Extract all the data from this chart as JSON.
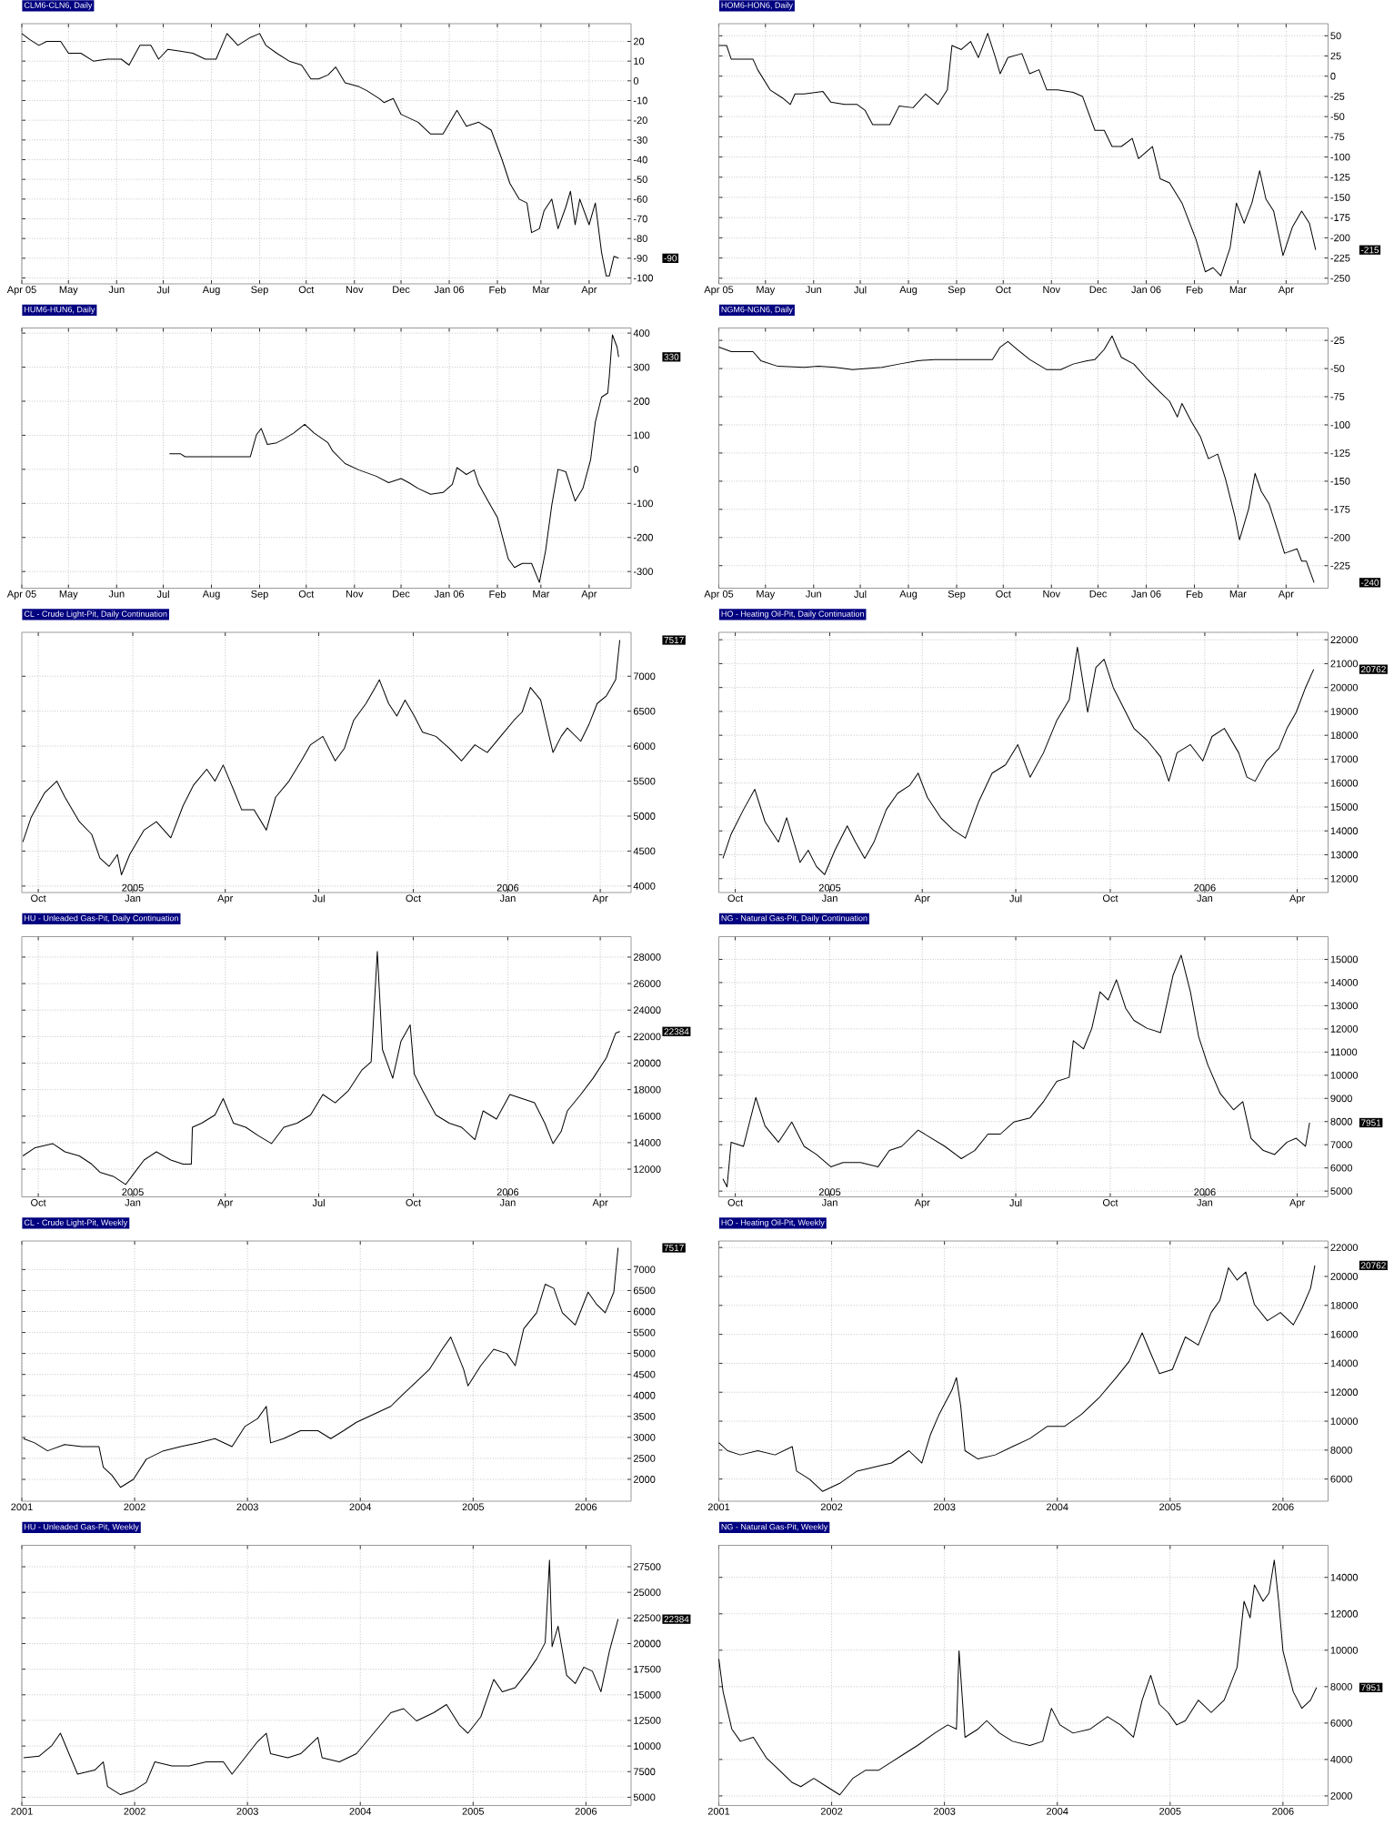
{
  "chart_data": [
    {
      "type": "line",
      "title": "CLM6-CLN6, Daily",
      "color": "#000000",
      "grid": true,
      "xlim": [
        "2005-04-01",
        "2006-04-28"
      ],
      "ylim": [
        -103,
        29
      ],
      "xticks": [
        {
          "value": "2005-04-01",
          "label": "Apr 05"
        },
        {
          "value": "2005-05-01",
          "label": "May"
        },
        {
          "value": "2005-06-01",
          "label": "Jun"
        },
        {
          "value": "2005-07-01",
          "label": "Jul"
        },
        {
          "value": "2005-08-01",
          "label": "Aug"
        },
        {
          "value": "2005-09-01",
          "label": "Sep"
        },
        {
          "value": "2005-10-01",
          "label": "Oct"
        },
        {
          "value": "2005-11-01",
          "label": "Nov"
        },
        {
          "value": "2005-12-01",
          "label": "Dec"
        },
        {
          "value": "2006-01-01",
          "label": "Jan 06"
        },
        {
          "value": "2006-02-01",
          "label": "Feb"
        },
        {
          "value": "2006-03-01",
          "label": "Mar"
        },
        {
          "value": "2006-04-01",
          "label": "Apr"
        }
      ],
      "yticks": [
        -100,
        -90,
        -80,
        -70,
        -60,
        -50,
        -40,
        -30,
        -20,
        -10,
        0,
        10,
        20
      ],
      "x": [
        "2005-04-01",
        "2005-04-06",
        "2005-04-12",
        "2005-04-17",
        "2005-04-26",
        "2005-05-01",
        "2005-05-09",
        "2005-05-17",
        "2005-05-26",
        "2005-06-04",
        "2005-06-09",
        "2005-06-16",
        "2005-06-23",
        "2005-06-28",
        "2005-07-04",
        "2005-07-12",
        "2005-07-20",
        "2005-07-28",
        "2005-08-04",
        "2005-08-11",
        "2005-08-18",
        "2005-08-26",
        "2005-09-01",
        "2005-09-05",
        "2005-09-12",
        "2005-09-20",
        "2005-09-28",
        "2005-10-04",
        "2005-10-09",
        "2005-10-15",
        "2005-10-20",
        "2005-10-26",
        "2005-11-04",
        "2005-11-09",
        "2005-11-17",
        "2005-11-20",
        "2005-11-26",
        "2005-12-01",
        "2005-12-12",
        "2005-12-20",
        "2005-12-28",
        "2006-01-06",
        "2006-01-12",
        "2006-01-20",
        "2006-01-28",
        "2006-02-04",
        "2006-02-09",
        "2006-02-15",
        "2006-02-20",
        "2006-02-23",
        "2006-02-28",
        "2006-03-03",
        "2006-03-08",
        "2006-03-12",
        "2006-03-17",
        "2006-03-20",
        "2006-03-23",
        "2006-03-26",
        "2006-04-01",
        "2006-04-05",
        "2006-04-09",
        "2006-04-12",
        "2006-04-14",
        "2006-04-17",
        "2006-04-20"
      ],
      "values": [
        24,
        21,
        18,
        20,
        20,
        14,
        14,
        10,
        11,
        11,
        8,
        18,
        18,
        11,
        16,
        15,
        14,
        11,
        11,
        24,
        18,
        22,
        24,
        18,
        14,
        10,
        8,
        1,
        1,
        3,
        7,
        -1,
        -3,
        -5,
        -9,
        -11,
        -9,
        -17,
        -21,
        -27,
        -27,
        -15,
        -23,
        -21,
        -25,
        -40,
        -52,
        -60,
        -62,
        -77,
        -75,
        -66,
        -60,
        -75,
        -64,
        -56,
        -73,
        -60,
        -73,
        -62,
        -87,
        -99,
        -99,
        -89,
        -90
      ],
      "annotations": [
        "-90"
      ]
    },
    {
      "type": "line",
      "title": "HOM6-HON6, Daily",
      "color": "#000000",
      "grid": true,
      "xlim": [
        "2005-04-01",
        "2006-04-28"
      ],
      "ylim": [
        -257,
        65
      ],
      "xticks": [
        {
          "value": "2005-04-01",
          "label": "Apr 05"
        },
        {
          "value": "2005-05-01",
          "label": "May"
        },
        {
          "value": "2005-06-01",
          "label": "Jun"
        },
        {
          "value": "2005-07-01",
          "label": "Jul"
        },
        {
          "value": "2005-08-01",
          "label": "Aug"
        },
        {
          "value": "2005-09-01",
          "label": "Sep"
        },
        {
          "value": "2005-10-01",
          "label": "Oct"
        },
        {
          "value": "2005-11-01",
          "label": "Nov"
        },
        {
          "value": "2005-12-01",
          "label": "Dec"
        },
        {
          "value": "2006-01-01",
          "label": "Jan 06"
        },
        {
          "value": "2006-02-01",
          "label": "Feb"
        },
        {
          "value": "2006-03-01",
          "label": "Mar"
        },
        {
          "value": "2006-04-01",
          "label": "Apr"
        }
      ],
      "yticks": [
        -250,
        -225,
        -200,
        -175,
        -150,
        -125,
        -100,
        -75,
        -50,
        -25,
        0,
        25,
        50
      ],
      "x": [
        "2005-04-01",
        "2005-04-06",
        "2005-04-09",
        "2005-04-23",
        "2005-04-26",
        "2005-05-04",
        "2005-05-12",
        "2005-05-17",
        "2005-05-20",
        "2005-05-26",
        "2005-06-07",
        "2005-06-12",
        "2005-06-21",
        "2005-06-29",
        "2005-07-04",
        "2005-07-09",
        "2005-07-20",
        "2005-07-26",
        "2005-08-04",
        "2005-08-12",
        "2005-08-20",
        "2005-08-26",
        "2005-08-29",
        "2005-09-04",
        "2005-09-10",
        "2005-09-15",
        "2005-09-21",
        "2005-09-26",
        "2005-09-29",
        "2005-10-04",
        "2005-10-13",
        "2005-10-18",
        "2005-10-24",
        "2005-10-29",
        "2005-11-05",
        "2005-11-15",
        "2005-11-21",
        "2005-11-29",
        "2005-12-05",
        "2005-12-10",
        "2005-12-16",
        "2005-12-23",
        "2005-12-27",
        "2006-01-05",
        "2006-01-10",
        "2006-01-16",
        "2006-01-24",
        "2006-02-02",
        "2006-02-08",
        "2006-02-13",
        "2006-02-18",
        "2006-02-24",
        "2006-02-28",
        "2006-03-05",
        "2006-03-10",
        "2006-03-15",
        "2006-03-19",
        "2006-03-24",
        "2006-03-30",
        "2006-04-05",
        "2006-04-11",
        "2006-04-16",
        "2006-04-20"
      ],
      "values": [
        38,
        38,
        21,
        21,
        8,
        -17,
        -27,
        -35,
        -22,
        -22,
        -19,
        -32,
        -35,
        -35,
        -42,
        -60,
        -60,
        -37,
        -39,
        -22,
        -35,
        -17,
        38,
        33,
        43,
        23,
        53,
        23,
        3,
        23,
        28,
        3,
        8,
        -17,
        -17,
        -20,
        -25,
        -67,
        -67,
        -87,
        -87,
        -77,
        -102,
        -87,
        -127,
        -132,
        -157,
        -202,
        -242,
        -237,
        -247,
        -212,
        -157,
        -182,
        -157,
        -117,
        -152,
        -167,
        -222,
        -187,
        -167,
        -182,
        -215
      ],
      "annotations": [
        "-215"
      ]
    },
    {
      "type": "line",
      "title": "HUM6-HUN6, Daily",
      "color": "#000000",
      "grid": true,
      "xlim": [
        "2005-04-01",
        "2006-04-28"
      ],
      "ylim": [
        -349,
        415
      ],
      "xticks": [
        {
          "value": "2005-04-01",
          "label": "Apr 05"
        },
        {
          "value": "2005-05-01",
          "label": "May"
        },
        {
          "value": "2005-06-01",
          "label": "Jun"
        },
        {
          "value": "2005-07-01",
          "label": "Jul"
        },
        {
          "value": "2005-08-01",
          "label": "Aug"
        },
        {
          "value": "2005-09-01",
          "label": "Sep"
        },
        {
          "value": "2005-10-01",
          "label": "Oct"
        },
        {
          "value": "2005-11-01",
          "label": "Nov"
        },
        {
          "value": "2005-12-01",
          "label": "Dec"
        },
        {
          "value": "2006-01-01",
          "label": "Jan 06"
        },
        {
          "value": "2006-02-01",
          "label": "Feb"
        },
        {
          "value": "2006-03-01",
          "label": "Mar"
        },
        {
          "value": "2006-04-01",
          "label": "Apr"
        }
      ],
      "yticks": [
        -300,
        -200,
        -100,
        0,
        100,
        200,
        300,
        400
      ],
      "x": [
        "2005-07-05",
        "2005-07-12",
        "2005-07-15",
        "2005-08-26",
        "2005-08-30",
        "2005-09-02",
        "2005-09-06",
        "2005-09-12",
        "2005-09-17",
        "2005-09-23",
        "2005-09-30",
        "2005-10-06",
        "2005-10-15",
        "2005-10-18",
        "2005-10-26",
        "2005-11-04",
        "2005-11-15",
        "2005-11-23",
        "2005-12-01",
        "2005-12-06",
        "2005-12-12",
        "2005-12-20",
        "2005-12-28",
        "2006-01-03",
        "2006-01-06",
        "2006-01-12",
        "2006-01-17",
        "2006-01-20",
        "2006-01-26",
        "2006-02-01",
        "2006-02-08",
        "2006-02-12",
        "2006-02-17",
        "2006-02-23",
        "2006-02-28",
        "2006-03-04",
        "2006-03-08",
        "2006-03-12",
        "2006-03-17",
        "2006-03-23",
        "2006-03-28",
        "2006-04-02",
        "2006-04-05",
        "2006-04-09",
        "2006-04-13",
        "2006-04-14",
        "2006-04-16",
        "2006-04-19",
        "2006-04-20"
      ],
      "values": [
        46,
        46,
        37,
        37,
        102,
        120,
        73,
        78,
        90,
        107,
        132,
        107,
        78,
        54,
        17,
        -2,
        -20,
        -39,
        -27,
        -39,
        -56,
        -73,
        -68,
        -44,
        5,
        -15,
        -2,
        -44,
        -93,
        -141,
        -263,
        -288,
        -276,
        -276,
        -332,
        -239,
        -105,
        0,
        -7,
        -93,
        -56,
        29,
        139,
        212,
        224,
        273,
        395,
        359,
        330
      ],
      "annotations": [
        "330"
      ]
    },
    {
      "type": "line",
      "title": "NGM6-NGN6, Daily",
      "color": "#000000",
      "grid": true,
      "xlim": [
        "2005-04-01",
        "2006-04-28"
      ],
      "ylim": [
        -245,
        -14
      ],
      "xticks": [
        {
          "value": "2005-04-01",
          "label": "Apr 05"
        },
        {
          "value": "2005-05-01",
          "label": "May"
        },
        {
          "value": "2005-06-01",
          "label": "Jun"
        },
        {
          "value": "2005-07-01",
          "label": "Jul"
        },
        {
          "value": "2005-08-01",
          "label": "Aug"
        },
        {
          "value": "2005-09-01",
          "label": "Sep"
        },
        {
          "value": "2005-10-01",
          "label": "Oct"
        },
        {
          "value": "2005-11-01",
          "label": "Nov"
        },
        {
          "value": "2005-12-01",
          "label": "Dec"
        },
        {
          "value": "2006-01-01",
          "label": "Jan 06"
        },
        {
          "value": "2006-02-01",
          "label": "Feb"
        },
        {
          "value": "2006-03-01",
          "label": "Mar"
        },
        {
          "value": "2006-04-01",
          "label": "Apr"
        }
      ],
      "yticks": [
        -225,
        -200,
        -175,
        -150,
        -125,
        -100,
        -75,
        -50,
        -25
      ],
      "x": [
        "2005-04-01",
        "2005-04-09",
        "2005-04-23",
        "2005-04-28",
        "2005-05-09",
        "2005-05-26",
        "2005-06-04",
        "2005-06-15",
        "2005-06-26",
        "2005-07-15",
        "2005-07-26",
        "2005-08-07",
        "2005-08-18",
        "2005-09-10",
        "2005-09-24",
        "2005-09-29",
        "2005-10-04",
        "2005-10-10",
        "2005-10-18",
        "2005-10-29",
        "2005-11-07",
        "2005-11-15",
        "2005-11-24",
        "2005-11-29",
        "2005-12-05",
        "2005-12-10",
        "2005-12-13",
        "2005-12-16",
        "2005-12-24",
        "2006-01-02",
        "2006-01-10",
        "2006-01-16",
        "2006-01-21",
        "2006-01-24",
        "2006-01-30",
        "2006-02-05",
        "2006-02-10",
        "2006-02-16",
        "2006-02-21",
        "2006-02-27",
        "2006-03-02",
        "2006-03-08",
        "2006-03-12",
        "2006-03-16",
        "2006-03-21",
        "2006-03-27",
        "2006-03-31",
        "2006-04-08",
        "2006-04-11",
        "2006-04-14",
        "2006-04-19"
      ],
      "values": [
        -31,
        -35,
        -35,
        -43,
        -48,
        -49,
        -48,
        -49,
        -51,
        -49,
        -46,
        -43,
        -42,
        -42,
        -42,
        -31,
        -26,
        -33,
        -42,
        -51,
        -51,
        -46,
        -43,
        -42,
        -33,
        -21,
        -31,
        -40,
        -46,
        -60,
        -71,
        -79,
        -93,
        -81,
        -97,
        -111,
        -130,
        -126,
        -148,
        -181,
        -202,
        -174,
        -143,
        -159,
        -170,
        -196,
        -214,
        -210,
        -221,
        -221,
        -240
      ],
      "annotations": [
        "-240"
      ]
    },
    {
      "type": "line",
      "title": "CL - Crude Light-Pit, Daily Continuation",
      "color": "#000000",
      "grid": true,
      "xlim": [
        "2004-09-15",
        "2006-05-01"
      ],
      "ylim": [
        3907,
        7628
      ],
      "xticks": [
        {
          "value": "2004-10-01",
          "label": "Oct"
        },
        {
          "value": "2005-01-01",
          "label": "Jan"
        },
        {
          "value": "2005-04-01",
          "label": "Apr"
        },
        {
          "value": "2005-07-01",
          "label": "Jul"
        },
        {
          "value": "2005-10-01",
          "label": "Oct"
        },
        {
          "value": "2006-01-01",
          "label": "Jan"
        },
        {
          "value": "2006-04-01",
          "label": "Apr"
        }
      ],
      "yticks": [
        4000,
        4500,
        5000,
        5500,
        6000,
        6500,
        7000
      ],
      "x": [
        "2004-09-16",
        "2004-09-24",
        "2004-10-07",
        "2004-10-19",
        "2004-10-27",
        "2004-11-10",
        "2004-11-22",
        "2004-11-30",
        "2004-12-09",
        "2004-12-17",
        "2004-12-21",
        "2004-12-29",
        "2005-01-12",
        "2005-01-24",
        "2005-02-07",
        "2005-02-19",
        "2005-03-01",
        "2005-03-14",
        "2005-03-22",
        "2005-03-30",
        "2005-04-09",
        "2005-04-17",
        "2005-04-29",
        "2005-05-11",
        "2005-05-20",
        "2005-06-02",
        "2005-06-14",
        "2005-06-23",
        "2005-07-05",
        "2005-07-17",
        "2005-07-26",
        "2005-08-04",
        "2005-08-16",
        "2005-08-25",
        "2005-08-29",
        "2005-09-07",
        "2005-09-15",
        "2005-09-23",
        "2005-10-02",
        "2005-10-10",
        "2005-10-23",
        "2005-11-05",
        "2005-11-17",
        "2005-11-30",
        "2005-12-12",
        "2005-12-25",
        "2006-01-07",
        "2006-01-15",
        "2006-01-23",
        "2006-02-02",
        "2006-02-14",
        "2006-02-22",
        "2006-02-28",
        "2006-03-13",
        "2006-03-21",
        "2006-03-29",
        "2006-04-07",
        "2006-04-16",
        "2006-04-20"
      ],
      "values": [
        4630,
        4980,
        5330,
        5500,
        5270,
        4920,
        4740,
        4400,
        4280,
        4450,
        4160,
        4450,
        4800,
        4920,
        4690,
        5150,
        5440,
        5670,
        5500,
        5730,
        5380,
        5090,
        5090,
        4800,
        5270,
        5500,
        5790,
        6020,
        6140,
        5790,
        5970,
        6370,
        6610,
        6840,
        6950,
        6610,
        6430,
        6660,
        6430,
        6200,
        6140,
        5970,
        5790,
        6020,
        5910,
        6140,
        6370,
        6490,
        6840,
        6660,
        5910,
        6140,
        6260,
        6070,
        6310,
        6610,
        6720,
        6950,
        7517
      ],
      "annotations": [
        "7517",
        "2005",
        "2006"
      ]
    },
    {
      "type": "line",
      "title": "HO - Heating Oil-Pit, Daily Continuation",
      "color": "#000000",
      "grid": true,
      "xlim": [
        "2004-09-15",
        "2006-05-01"
      ],
      "ylim": [
        11420,
        22310
      ],
      "xticks": [
        {
          "value": "2004-10-01",
          "label": "Oct"
        },
        {
          "value": "2005-01-01",
          "label": "Jan"
        },
        {
          "value": "2005-04-01",
          "label": "Apr"
        },
        {
          "value": "2005-07-01",
          "label": "Jul"
        },
        {
          "value": "2005-10-01",
          "label": "Oct"
        },
        {
          "value": "2006-01-01",
          "label": "Jan"
        },
        {
          "value": "2006-04-01",
          "label": "Apr"
        }
      ],
      "yticks": [
        12000,
        13000,
        14000,
        15000,
        16000,
        17000,
        18000,
        19000,
        20000,
        21000,
        22000
      ],
      "x": [
        "2004-09-19",
        "2004-09-27",
        "2004-10-09",
        "2004-10-20",
        "2004-10-30",
        "2004-11-12",
        "2004-11-20",
        "2004-12-03",
        "2004-12-11",
        "2004-12-19",
        "2004-12-27",
        "2005-01-06",
        "2005-01-18",
        "2005-01-26",
        "2005-02-04",
        "2005-02-13",
        "2005-02-25",
        "2005-03-08",
        "2005-03-20",
        "2005-03-28",
        "2005-04-06",
        "2005-04-19",
        "2005-05-01",
        "2005-05-13",
        "2005-05-26",
        "2005-06-08",
        "2005-06-21",
        "2005-07-03",
        "2005-07-15",
        "2005-07-28",
        "2005-08-10",
        "2005-08-22",
        "2005-08-30",
        "2005-09-09",
        "2005-09-17",
        "2005-09-25",
        "2005-10-04",
        "2005-10-12",
        "2005-10-24",
        "2005-11-06",
        "2005-11-19",
        "2005-11-27",
        "2005-12-05",
        "2005-12-18",
        "2005-12-30",
        "2006-01-08",
        "2006-01-20",
        "2006-02-03",
        "2006-02-11",
        "2006-02-19",
        "2006-03-02",
        "2006-03-14",
        "2006-03-22",
        "2006-03-31",
        "2006-04-09",
        "2006-04-17"
      ],
      "values": [
        12850,
        13870,
        14890,
        15740,
        14380,
        13530,
        14550,
        12680,
        13190,
        12510,
        12170,
        13190,
        14210,
        13530,
        12850,
        13530,
        14890,
        15570,
        15910,
        16420,
        15400,
        14550,
        14040,
        13700,
        15230,
        16420,
        16760,
        17610,
        16250,
        17270,
        18630,
        19480,
        21690,
        18970,
        20840,
        21180,
        19990,
        19310,
        18290,
        17780,
        17100,
        16080,
        17270,
        17610,
        16930,
        17950,
        18290,
        17270,
        16250,
        16080,
        16930,
        17440,
        18290,
        18970,
        19990,
        20762
      ],
      "annotations": [
        "20762",
        "2005",
        "2006"
      ]
    },
    {
      "type": "line",
      "title": "HU - Unleaded Gas-Pit, Daily Continuation",
      "color": "#000000",
      "grid": true,
      "xlim": [
        "2004-09-15",
        "2006-05-01"
      ],
      "ylim": [
        9910,
        29540
      ],
      "xticks": [
        {
          "value": "2004-10-01",
          "label": "Oct"
        },
        {
          "value": "2005-01-01",
          "label": "Jan"
        },
        {
          "value": "2005-04-01",
          "label": "Apr"
        },
        {
          "value": "2005-07-01",
          "label": "Jul"
        },
        {
          "value": "2005-10-01",
          "label": "Oct"
        },
        {
          "value": "2006-01-01",
          "label": "Jan"
        },
        {
          "value": "2006-04-01",
          "label": "Apr"
        }
      ],
      "yticks": [
        12000,
        14000,
        16000,
        18000,
        20000,
        22000,
        24000,
        26000,
        28000
      ],
      "x": [
        "2004-09-16",
        "2004-09-28",
        "2004-10-15",
        "2004-10-27",
        "2004-11-10",
        "2004-11-22",
        "2004-11-30",
        "2004-12-13",
        "2004-12-25",
        "2005-01-03",
        "2005-01-12",
        "2005-01-24",
        "2005-02-07",
        "2005-02-19",
        "2005-02-27",
        "2005-02-28",
        "2005-03-09",
        "2005-03-22",
        "2005-03-30",
        "2005-04-09",
        "2005-04-21",
        "2005-05-03",
        "2005-05-16",
        "2005-05-28",
        "2005-06-10",
        "2005-06-23",
        "2005-07-05",
        "2005-07-17",
        "2005-07-30",
        "2005-08-12",
        "2005-08-21",
        "2005-08-27",
        "2005-09-01",
        "2005-09-11",
        "2005-09-19",
        "2005-09-28",
        "2005-10-02",
        "2005-10-10",
        "2005-10-23",
        "2005-11-05",
        "2005-11-17",
        "2005-11-30",
        "2005-12-08",
        "2005-12-21",
        "2006-01-03",
        "2006-01-15",
        "2006-01-27",
        "2006-02-06",
        "2006-02-14",
        "2006-02-22",
        "2006-02-28",
        "2006-03-13",
        "2006-03-25",
        "2006-04-07",
        "2006-04-16",
        "2006-04-20"
      ],
      "values": [
        13000,
        13620,
        13930,
        13310,
        13000,
        12380,
        11770,
        11460,
        10840,
        11770,
        12690,
        13310,
        12690,
        12380,
        12380,
        15160,
        15470,
        16090,
        17320,
        15470,
        15160,
        14540,
        13930,
        15160,
        15470,
        16090,
        17630,
        17010,
        17940,
        19480,
        20100,
        28430,
        21030,
        18860,
        21640,
        22880,
        19170,
        17940,
        16090,
        15470,
        15160,
        14230,
        16400,
        15780,
        17630,
        17320,
        17010,
        15470,
        13930,
        14850,
        16400,
        17630,
        18860,
        20410,
        22260,
        22384
      ],
      "annotations": [
        "22384",
        "2005",
        "2006"
      ]
    },
    {
      "type": "line",
      "title": "NG - Natural Gas-Pit, Daily Continuation",
      "color": "#000000",
      "grid": true,
      "xlim": [
        "2004-09-15",
        "2006-05-01"
      ],
      "ylim": [
        4750,
        15980
      ],
      "xticks": [
        {
          "value": "2004-10-01",
          "label": "Oct"
        },
        {
          "value": "2005-01-01",
          "label": "Jan"
        },
        {
          "value": "2005-04-01",
          "label": "Apr"
        },
        {
          "value": "2005-07-01",
          "label": "Jul"
        },
        {
          "value": "2005-10-01",
          "label": "Oct"
        },
        {
          "value": "2006-01-01",
          "label": "Jan"
        },
        {
          "value": "2006-04-01",
          "label": "Apr"
        }
      ],
      "yticks": [
        5000,
        6000,
        7000,
        8000,
        9000,
        10000,
        11000,
        12000,
        13000,
        14000,
        15000
      ],
      "x": [
        "2004-09-19",
        "2004-09-23",
        "2004-09-27",
        "2004-10-09",
        "2004-10-21",
        "2004-10-30",
        "2004-11-12",
        "2004-11-25",
        "2004-12-07",
        "2004-12-19",
        "2005-01-02",
        "2005-01-14",
        "2005-01-31",
        "2005-02-17",
        "2005-02-28",
        "2005-03-12",
        "2005-03-28",
        "2005-04-10",
        "2005-04-23",
        "2005-05-09",
        "2005-05-22",
        "2005-06-04",
        "2005-06-16",
        "2005-06-29",
        "2005-07-15",
        "2005-07-28",
        "2005-08-10",
        "2005-08-22",
        "2005-08-26",
        "2005-09-05",
        "2005-09-13",
        "2005-09-21",
        "2005-09-29",
        "2005-10-07",
        "2005-10-16",
        "2005-10-24",
        "2005-11-06",
        "2005-11-19",
        "2005-12-01",
        "2005-12-09",
        "2005-12-18",
        "2005-12-26",
        "2006-01-04",
        "2006-01-16",
        "2006-01-29",
        "2006-02-07",
        "2006-02-15",
        "2006-02-27",
        "2006-03-10",
        "2006-03-22",
        "2006-03-31",
        "2006-04-09",
        "2006-04-13"
      ],
      "values": [
        5530,
        5180,
        7110,
        6930,
        9040,
        7810,
        7110,
        7980,
        6930,
        6580,
        6050,
        6230,
        6230,
        6050,
        6750,
        6930,
        7630,
        7280,
        6930,
        6400,
        6750,
        7460,
        7460,
        7980,
        8160,
        8860,
        9740,
        9910,
        11490,
        11140,
        12020,
        13600,
        13250,
        14120,
        12890,
        12370,
        12020,
        11840,
        14300,
        15180,
        13600,
        11670,
        10440,
        9210,
        8510,
        8860,
        7280,
        6750,
        6580,
        7110,
        7280,
        6930,
        7951
      ],
      "annotations": [
        "7951",
        "2005",
        "2006"
      ]
    },
    {
      "type": "line",
      "title": "CL - Crude Light-Pit, Weekly",
      "color": "#000000",
      "grid": true,
      "xlim": [
        2001.0,
        2006.4
      ],
      "ylim": [
        1480,
        7680
      ],
      "xticks": [
        2001,
        2002,
        2003,
        2004,
        2005,
        2006
      ],
      "yticks": [
        2000,
        2500,
        3000,
        3500,
        4000,
        4500,
        5000,
        5500,
        6000,
        6500,
        7000
      ],
      "x": [
        2001.015,
        2001.114,
        2001.228,
        2001.38,
        2001.532,
        2001.684,
        2001.722,
        2001.798,
        2001.875,
        2001.989,
        2002.103,
        2002.255,
        2002.407,
        2002.559,
        2002.711,
        2002.863,
        2002.977,
        2003.091,
        2003.167,
        2003.205,
        2003.319,
        2003.471,
        2003.624,
        2003.738,
        2003.852,
        2003.966,
        2004.118,
        2004.27,
        2004.384,
        2004.498,
        2004.612,
        2004.726,
        2004.802,
        2004.916,
        2004.954,
        2005.068,
        2005.183,
        2005.297,
        2005.373,
        2005.449,
        2005.563,
        2005.639,
        2005.715,
        2005.791,
        2005.905,
        2006.019,
        2006.095,
        2006.171,
        2006.247,
        2006.285
      ],
      "values": [
        2970,
        2870,
        2680,
        2830,
        2780,
        2780,
        2290,
        2100,
        1810,
        2000,
        2480,
        2680,
        2780,
        2870,
        2970,
        2780,
        3260,
        3450,
        3740,
        2870,
        2970,
        3160,
        3160,
        2970,
        3160,
        3360,
        3550,
        3740,
        4040,
        4330,
        4620,
        5100,
        5390,
        4620,
        4230,
        4710,
        5100,
        5000,
        4710,
        5590,
        5970,
        6650,
        6550,
        5970,
        5680,
        6460,
        6170,
        5970,
        6460,
        7517
      ],
      "annotations": [
        "7517"
      ]
    },
    {
      "type": "line",
      "title": "HO - Heating Oil-Pit, Weekly",
      "color": "#000000",
      "grid": true,
      "xlim": [
        2001.0,
        2006.4
      ],
      "ylim": [
        4470,
        22450
      ],
      "xticks": [
        2001,
        2002,
        2003,
        2004,
        2005,
        2006
      ],
      "yticks": [
        6000,
        8000,
        10000,
        12000,
        14000,
        16000,
        18000,
        20000,
        22000
      ],
      "x": [
        2001.0,
        2001.077,
        2001.191,
        2001.345,
        2001.498,
        2001.651,
        2001.689,
        2001.804,
        2001.919,
        2002.072,
        2002.225,
        2002.378,
        2002.531,
        2002.685,
        2002.799,
        2002.876,
        2002.953,
        2003.067,
        2003.106,
        2003.144,
        2003.182,
        2003.297,
        2003.45,
        2003.603,
        2003.757,
        2003.91,
        2004.063,
        2004.216,
        2004.369,
        2004.522,
        2004.637,
        2004.752,
        2004.828,
        2004.905,
        2005.02,
        2005.135,
        2005.25,
        2005.364,
        2005.441,
        2005.518,
        2005.594,
        2005.671,
        2005.747,
        2005.862,
        2005.977,
        2006.092,
        2006.168,
        2006.245,
        2006.283
      ],
      "values": [
        8520,
        7960,
        7670,
        7960,
        7670,
        8240,
        6550,
        5990,
        5150,
        5710,
        6550,
        6830,
        7110,
        7960,
        7110,
        9080,
        10480,
        12170,
        13010,
        11050,
        7960,
        7390,
        7670,
        8240,
        8800,
        9640,
        9640,
        10480,
        11610,
        13010,
        14130,
        16100,
        14690,
        13290,
        13570,
        15820,
        15260,
        17510,
        18350,
        20600,
        19750,
        20310,
        18070,
        16940,
        17510,
        16660,
        17780,
        19190,
        20762
      ],
      "annotations": [
        "20762"
      ]
    },
    {
      "type": "line",
      "title": "HU - Unleaded Gas-Pit, Weekly",
      "color": "#000000",
      "grid": true,
      "xlim": [
        2001.0,
        2006.4
      ],
      "ylim": [
        4190,
        29590
      ],
      "xticks": [
        2001,
        2002,
        2003,
        2004,
        2005,
        2006
      ],
      "yticks": [
        5000,
        7500,
        10000,
        12500,
        15000,
        17500,
        20000,
        22500,
        25000,
        27500
      ],
      "x": [
        2001.015,
        2001.152,
        2001.266,
        2001.342,
        2001.418,
        2001.494,
        2001.646,
        2001.722,
        2001.76,
        2001.875,
        2001.989,
        2002.103,
        2002.179,
        2002.331,
        2002.483,
        2002.635,
        2002.787,
        2002.863,
        2002.977,
        2003.091,
        2003.167,
        2003.205,
        2003.357,
        2003.471,
        2003.624,
        2003.662,
        2003.814,
        2003.966,
        2004.118,
        2004.27,
        2004.384,
        2004.498,
        2004.65,
        2004.764,
        2004.878,
        2004.954,
        2005.068,
        2005.183,
        2005.259,
        2005.373,
        2005.487,
        2005.563,
        2005.639,
        2005.677,
        2005.7,
        2005.753,
        2005.829,
        2005.905,
        2005.981,
        2006.057,
        2006.133,
        2006.209,
        2006.285
      ],
      "values": [
        8850,
        9000,
        10050,
        11250,
        9250,
        7250,
        7650,
        8450,
        6050,
        5250,
        5650,
        6450,
        8450,
        8050,
        8050,
        8450,
        8450,
        7250,
        8850,
        10450,
        11250,
        9250,
        8850,
        9250,
        10850,
        8850,
        8450,
        9250,
        11250,
        13250,
        13650,
        12450,
        13250,
        14050,
        12050,
        11250,
        12850,
        16500,
        15300,
        15700,
        17300,
        18500,
        20100,
        28150,
        19700,
        21700,
        16900,
        16100,
        17700,
        17300,
        15300,
        19300,
        22384
      ],
      "annotations": [
        "22384"
      ]
    },
    {
      "type": "line",
      "title": "NG - Natural Gas-Pit, Weekly",
      "color": "#000000",
      "grid": true,
      "xlim": [
        2001.0,
        2006.4
      ],
      "ylim": [
        1470,
        15760
      ],
      "xticks": [
        2001,
        2002,
        2003,
        2004,
        2005,
        2006
      ],
      "yticks": [
        2000,
        4000,
        6000,
        8000,
        10000,
        12000,
        14000
      ],
      "x": [
        2001.0,
        2001.038,
        2001.115,
        2001.191,
        2001.306,
        2001.421,
        2001.536,
        2001.651,
        2001.727,
        2001.842,
        2001.957,
        2002.072,
        2002.187,
        2002.302,
        2002.417,
        2002.531,
        2002.646,
        2002.761,
        2002.914,
        2003.029,
        2003.106,
        2003.129,
        2003.182,
        2003.297,
        2003.374,
        2003.488,
        2003.603,
        2003.757,
        2003.871,
        2003.948,
        2004.024,
        2004.139,
        2004.292,
        2004.445,
        2004.56,
        2004.675,
        2004.752,
        2004.828,
        2004.905,
        2004.982,
        2005.058,
        2005.135,
        2005.25,
        2005.364,
        2005.479,
        2005.594,
        2005.655,
        2005.709,
        2005.747,
        2005.824,
        2005.877,
        2005.923,
        2005.962,
        2006.0,
        2006.092,
        2006.168,
        2006.245,
        2006.298
      ],
      "values": [
        9520,
        7710,
        5670,
        5000,
        5220,
        4090,
        3410,
        2730,
        2510,
        2960,
        2510,
        2060,
        2960,
        3410,
        3410,
        3860,
        4320,
        4770,
        5450,
        5900,
        5670,
        9970,
        5220,
        5670,
        6130,
        5450,
        5000,
        4770,
        5000,
        6810,
        5900,
        5450,
        5670,
        6350,
        5900,
        5220,
        7260,
        8620,
        7030,
        6580,
        5900,
        6130,
        7260,
        6580,
        7260,
        9070,
        12690,
        11780,
        13590,
        12690,
        13140,
        14950,
        12690,
        9970,
        7710,
        6810,
        7260,
        7951
      ],
      "annotations": [
        "7951"
      ]
    }
  ]
}
